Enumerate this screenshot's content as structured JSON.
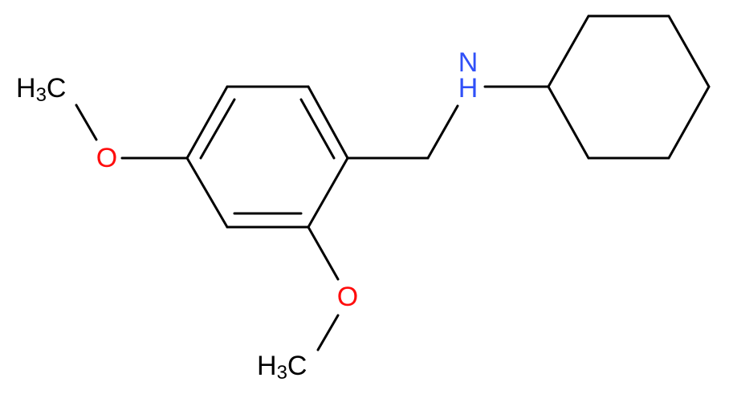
{
  "atoms": [
    {
      "parts": [
        "H",
        "3",
        "C"
      ]
    },
    {
      "parts": [
        "O"
      ]
    },
    {
      "parts": [
        "O"
      ]
    },
    {
      "parts": [
        "H",
        "3",
        "C"
      ]
    },
    {
      "parts": [
        "N",
        "H"
      ]
    }
  ]
}
